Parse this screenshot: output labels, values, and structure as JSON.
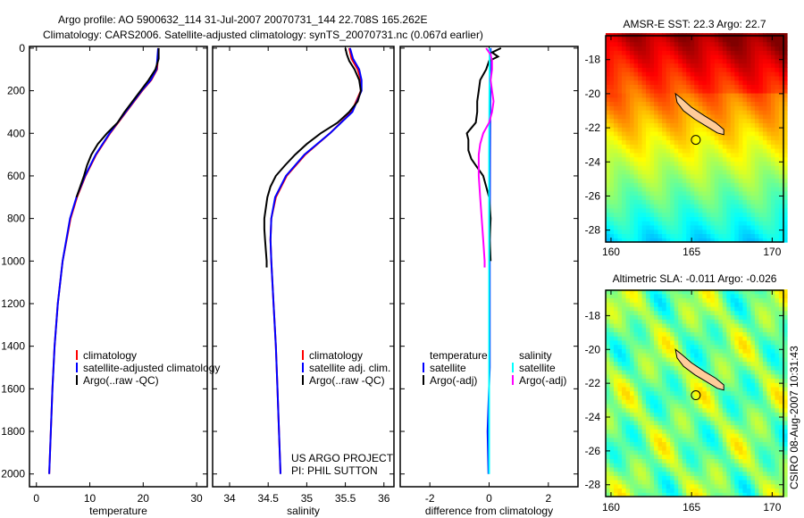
{
  "title": {
    "line1": "Argo profile: AO 5900632_114 31-Jul-2007 20070731_144 22.708S 165.262E",
    "line2": "Climatology: CARS2006. Satellite-adjusted climatology: synTS_20070731.nc (0.067d earlier)"
  },
  "side_stamp": "CSIRO 08-Aug-2007 10:31:43",
  "colors": {
    "climatology": "#ff0000",
    "satellite": "#0000ff",
    "argo": "#000000",
    "sal_satellite": "#00ffff",
    "sal_argo": "#ff00ff",
    "land": "#ffcc99"
  },
  "chart_data": [
    {
      "type": "line",
      "id": "temperature",
      "xlabel": "temperature",
      "xlim": [
        -1.3,
        32
      ],
      "xticks": [
        "0",
        "10",
        "20",
        "30"
      ],
      "xtick_values": [
        0,
        10,
        20,
        30
      ],
      "ylim": [
        2060,
        -8
      ],
      "yticks": [
        "0",
        "200",
        "400",
        "600",
        "800",
        "1000",
        "1200",
        "1400",
        "1600",
        "1800",
        "2000"
      ],
      "ytick_values": [
        0,
        200,
        400,
        600,
        800,
        1000,
        1200,
        1400,
        1600,
        1800,
        2000
      ],
      "legend": [
        "climatology",
        "satellite-adjusted climatology",
        "Argo(..raw -QC)"
      ],
      "series": [
        {
          "name": "climatology",
          "color": "#ff0000",
          "depth": [
            0,
            100,
            150,
            200,
            300,
            400,
            500,
            600,
            700,
            800,
            1000,
            1200,
            1400,
            1600,
            1800,
            2000
          ],
          "values": [
            22.9,
            22.6,
            21.5,
            19.8,
            16.8,
            13.8,
            11.2,
            9.2,
            7.6,
            6.4,
            4.9,
            4.0,
            3.4,
            3.0,
            2.7,
            2.4
          ]
        },
        {
          "name": "satellite-adjusted climatology",
          "color": "#0000ff",
          "depth": [
            0,
            100,
            150,
            200,
            300,
            400,
            500,
            600,
            700,
            800,
            1000,
            1200,
            1400,
            1600,
            1800,
            2000
          ],
          "values": [
            22.8,
            22.5,
            21.4,
            19.7,
            16.7,
            13.7,
            11.1,
            9.1,
            7.5,
            6.3,
            4.9,
            4.0,
            3.4,
            3.0,
            2.7,
            2.4
          ]
        },
        {
          "name": "Argo(..raw -QC)",
          "color": "#000000",
          "depth": [
            0,
            50,
            100,
            150,
            200,
            300,
            350,
            400,
            450,
            500,
            550,
            600,
            700
          ],
          "values": [
            22.9,
            22.9,
            22.3,
            21.0,
            19.5,
            16.5,
            15.2,
            13.2,
            11.5,
            10.3,
            9.5,
            8.9,
            7.5
          ]
        }
      ]
    },
    {
      "type": "line",
      "id": "salinity",
      "xlabel": "salinity",
      "xlim": [
        33.78,
        36.13
      ],
      "xticks": [
        "34",
        "34.5",
        "35",
        "35.5",
        "36"
      ],
      "xtick_values": [
        34,
        34.5,
        35,
        35.5,
        36
      ],
      "ylim": [
        2060,
        -8
      ],
      "legend": [
        "climatology",
        "satellite adj. clim.",
        "Argo(..raw -QC)"
      ],
      "annotation": [
        "US ARGO PROJECT",
        "PI: PHIL SUTTON"
      ],
      "series": [
        {
          "name": "climatology",
          "color": "#ff0000",
          "depth": [
            0,
            50,
            100,
            150,
            200,
            300,
            400,
            500,
            600,
            700,
            800,
            900,
            1000,
            1200,
            1400,
            1600,
            1800,
            2000
          ],
          "values": [
            35.55,
            35.58,
            35.66,
            35.7,
            35.7,
            35.58,
            35.3,
            34.98,
            34.74,
            34.6,
            34.54,
            34.53,
            34.54,
            34.57,
            34.6,
            34.62,
            34.64,
            34.66
          ]
        },
        {
          "name": "satellite adj. clim.",
          "color": "#0000ff",
          "depth": [
            0,
            50,
            100,
            150,
            200,
            300,
            400,
            500,
            600,
            700,
            800,
            900,
            1000,
            1200,
            1400,
            1600,
            1800,
            2000
          ],
          "values": [
            35.56,
            35.6,
            35.68,
            35.71,
            35.71,
            35.59,
            35.3,
            34.97,
            34.73,
            34.59,
            34.54,
            34.53,
            34.54,
            34.57,
            34.6,
            34.62,
            34.64,
            34.66
          ]
        },
        {
          "name": "Argo(..raw -QC)",
          "color": "#000000",
          "depth": [
            0,
            30,
            60,
            100,
            150,
            200,
            250,
            300,
            350,
            400,
            450,
            500,
            550,
            600,
            650,
            700,
            750,
            800,
            850,
            900,
            950,
            1000,
            1030
          ],
          "values": [
            35.5,
            35.52,
            35.55,
            35.62,
            35.68,
            35.7,
            35.66,
            35.55,
            35.4,
            35.18,
            35.0,
            34.85,
            34.72,
            34.6,
            34.53,
            34.49,
            34.47,
            34.45,
            34.45,
            34.46,
            34.47,
            34.48,
            34.48
          ]
        }
      ]
    },
    {
      "type": "line",
      "id": "difference",
      "xlabel": "difference from climatology",
      "xlim": [
        -3.0,
        3.0
      ],
      "xticks": [
        "-2",
        "0",
        "2"
      ],
      "xtick_values": [
        -2,
        0,
        2
      ],
      "ylim": [
        2060,
        -8
      ],
      "legend": {
        "temperature_header": "temperature",
        "salinity_header": "salinity",
        "items": [
          "satellite",
          "Argo(-adj)",
          "satellite",
          "Argo(-adj)"
        ]
      },
      "series": [
        {
          "name": "temperature satellite",
          "color": "#0000ff",
          "depth": [
            0,
            500,
            1000,
            1500,
            1800,
            2000
          ],
          "values": [
            0.05,
            0.03,
            0.02,
            0.02,
            -0.05,
            -0.02
          ]
        },
        {
          "name": "temperature Argo(-adj)",
          "color": "#000000",
          "depth": [
            0,
            20,
            40,
            60,
            100,
            150,
            200,
            250,
            300,
            350,
            400,
            430,
            480,
            520,
            560,
            600,
            650,
            700,
            800,
            900,
            1000
          ],
          "values": [
            0.4,
            0.1,
            0.3,
            0.0,
            -0.1,
            -0.3,
            -0.35,
            -0.4,
            -0.4,
            -0.45,
            -0.75,
            -0.7,
            -0.7,
            -0.6,
            -0.4,
            -0.2,
            -0.1,
            0.0,
            0.05,
            0.02,
            0.05
          ]
        },
        {
          "name": "salinity satellite",
          "color": "#00ffff",
          "depth": [
            0,
            500,
            1000,
            1500,
            2000
          ],
          "values": [
            0.02,
            0.0,
            0.0,
            0.0,
            0.0
          ]
        },
        {
          "name": "salinity Argo(-adj)",
          "color": "#ff00ff",
          "depth": [
            0,
            30,
            60,
            100,
            150,
            200,
            250,
            300,
            350,
            400,
            450,
            500,
            600,
            700,
            800,
            900,
            1000,
            1030
          ],
          "values": [
            -0.1,
            0.05,
            0.1,
            0.1,
            0.05,
            0.1,
            0.15,
            0.1,
            0.0,
            -0.2,
            -0.3,
            -0.35,
            -0.35,
            -0.3,
            -0.25,
            -0.2,
            -0.15,
            -0.15
          ]
        }
      ]
    },
    {
      "type": "heatmap",
      "id": "sst-map",
      "title": "AMSR-E SST: 22.3 Argo: 22.7",
      "xlim": [
        159.67,
        170.7
      ],
      "ylim": [
        -28.7,
        -16.6
      ],
      "xticks": [
        "160",
        "165",
        "170"
      ],
      "xtick_values": [
        160,
        165,
        170
      ],
      "yticks": [
        "-18",
        "-20",
        "-22",
        "-24",
        "-26",
        "-28"
      ],
      "ytick_values": [
        -18,
        -20,
        -22,
        -24,
        -26,
        -28
      ],
      "argo_position": {
        "lon": 165.262,
        "lat": -22.708
      }
    },
    {
      "type": "heatmap",
      "id": "sla-map",
      "title": "Altimetric SLA: -0.011 Argo: -0.026",
      "xlim": [
        159.67,
        170.7
      ],
      "ylim": [
        -28.7,
        -16.5
      ],
      "xticks": [
        "160",
        "165",
        "170"
      ],
      "xtick_values": [
        160,
        165,
        170
      ],
      "yticks": [
        "-18",
        "-20",
        "-22",
        "-24",
        "-26",
        "-28"
      ],
      "ytick_values": [
        -18,
        -20,
        -22,
        -24,
        -26,
        -28
      ],
      "argo_position": {
        "lon": 165.262,
        "lat": -22.708
      }
    }
  ],
  "coastline": {
    "new_caledonia": [
      [
        164.0,
        -20.0
      ],
      [
        164.4,
        -20.3
      ],
      [
        165.0,
        -20.8
      ],
      [
        165.8,
        -21.3
      ],
      [
        166.5,
        -21.7
      ],
      [
        167.0,
        -22.1
      ],
      [
        167.0,
        -22.4
      ],
      [
        166.6,
        -22.3
      ],
      [
        165.9,
        -21.9
      ],
      [
        165.2,
        -21.5
      ],
      [
        164.5,
        -21.0
      ],
      [
        164.1,
        -20.5
      ]
    ]
  }
}
